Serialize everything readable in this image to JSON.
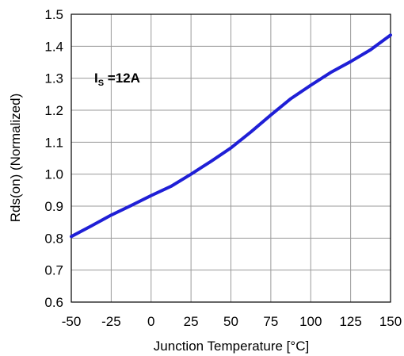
{
  "chart_data": {
    "type": "line",
    "title": "",
    "xlabel": "Junction Temperature [°C]",
    "ylabel": "Rds(on) (Normalized)",
    "xlim": [
      -50,
      150
    ],
    "ylim": [
      0.6,
      1.5
    ],
    "xticks": [
      "-50",
      "-25",
      "0",
      "25",
      "50",
      "75",
      "100",
      "125",
      "150"
    ],
    "yticks": [
      "0.6",
      "0.7",
      "0.8",
      "0.9",
      "1.0",
      "1.1",
      "1.2",
      "1.3",
      "1.4",
      "1.5"
    ],
    "grid": true,
    "annotation": {
      "main": "I",
      "subscript": "S",
      "rest": " =12A"
    },
    "series": [
      {
        "color": "#1f1fd6",
        "x": [
          -50,
          -37.5,
          -25,
          -12.5,
          0,
          12.5,
          25,
          37.5,
          50,
          62.5,
          75,
          87.5,
          100,
          112.5,
          125,
          137.5,
          150
        ],
        "y": [
          0.805,
          0.838,
          0.872,
          0.902,
          0.933,
          0.962,
          1.0,
          1.04,
          1.082,
          1.132,
          1.185,
          1.236,
          1.278,
          1.318,
          1.352,
          1.389,
          1.435
        ]
      }
    ]
  }
}
